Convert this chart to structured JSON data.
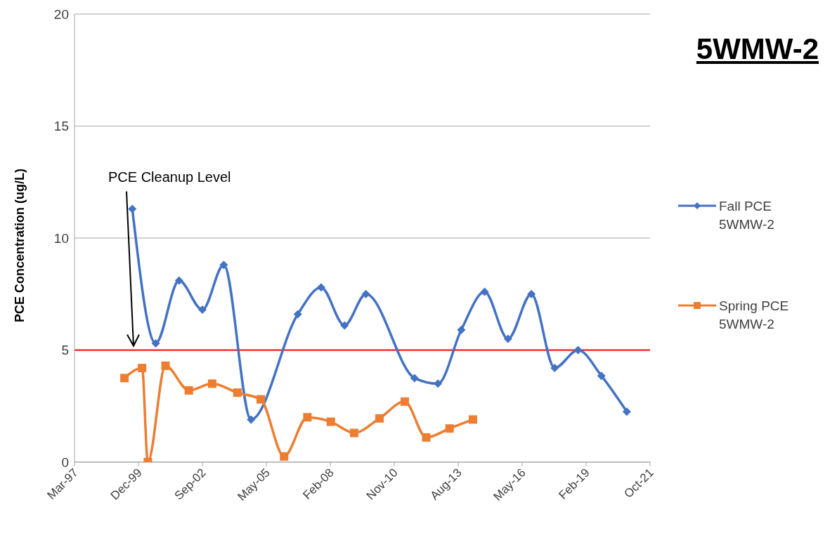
{
  "chart_data": {
    "type": "line",
    "title": "5WMW-2",
    "ylabel": "PCE Concentration (ug/L)",
    "xlim": [
      "1997-03-11",
      "2021-10-31"
    ],
    "xticks": [
      {
        "value": "1997-03-11",
        "label": "Mar-97"
      },
      {
        "value": "1999-12-06",
        "label": "Dec-99"
      },
      {
        "value": "2002-09-01",
        "label": "Sep-02"
      },
      {
        "value": "2005-05-28",
        "label": "May-05"
      },
      {
        "value": "2008-02-22",
        "label": "Feb-08"
      },
      {
        "value": "2010-11-18",
        "label": "Nov-10"
      },
      {
        "value": "2013-08-14",
        "label": "Aug-13"
      },
      {
        "value": "2016-05-10",
        "label": "May-16"
      },
      {
        "value": "2019-02-04",
        "label": "Feb-19"
      },
      {
        "value": "2021-10-31",
        "label": "Oct-21"
      }
    ],
    "ylim": [
      0,
      20
    ],
    "yticks": [
      0,
      5,
      10,
      15,
      20
    ],
    "grid": "y",
    "legend": "right",
    "series": [
      {
        "name": "Fall PCE 5WMW-2",
        "color": "#4472c4",
        "marker": "diamond",
        "x": [
          "1999-09",
          "2000-09",
          "2001-09",
          "2002-09",
          "2003-08",
          "2004-10",
          "2006-10",
          "2007-10",
          "2008-10",
          "2009-09",
          "2011-10",
          "2012-10",
          "2013-10",
          "2014-10",
          "2015-10",
          "2016-10",
          "2017-10",
          "2018-10",
          "2019-10",
          "2020-11"
        ],
        "values": [
          11.3,
          5.3,
          8.1,
          6.8,
          8.8,
          1.9,
          6.6,
          7.8,
          6.1,
          7.5,
          3.75,
          3.5,
          5.9,
          7.6,
          5.5,
          7.5,
          4.2,
          5.0,
          3.85,
          2.25
        ]
      },
      {
        "name": "Spring PCE 5WMW-2",
        "color": "#ed7d31",
        "marker": "square",
        "x": [
          "1999-05",
          "2000-02",
          "2000-05",
          "2001-02",
          "2002-02",
          "2003-02",
          "2004-03",
          "2005-03",
          "2006-03",
          "2007-03",
          "2008-03",
          "2009-03",
          "2010-04",
          "2011-05",
          "2012-04",
          "2013-04",
          "2014-04"
        ],
        "values": [
          3.75,
          4.2,
          0,
          4.3,
          3.2,
          3.5,
          3.1,
          2.8,
          0.25,
          2.0,
          1.8,
          1.3,
          1.95,
          2.7,
          1.1,
          1.5,
          1.9
        ]
      }
    ],
    "ref_lines": [
      {
        "axis": "y",
        "value": 5,
        "color": "#ff0000"
      }
    ],
    "annotations": [
      "PCE Cleanup Level"
    ]
  }
}
